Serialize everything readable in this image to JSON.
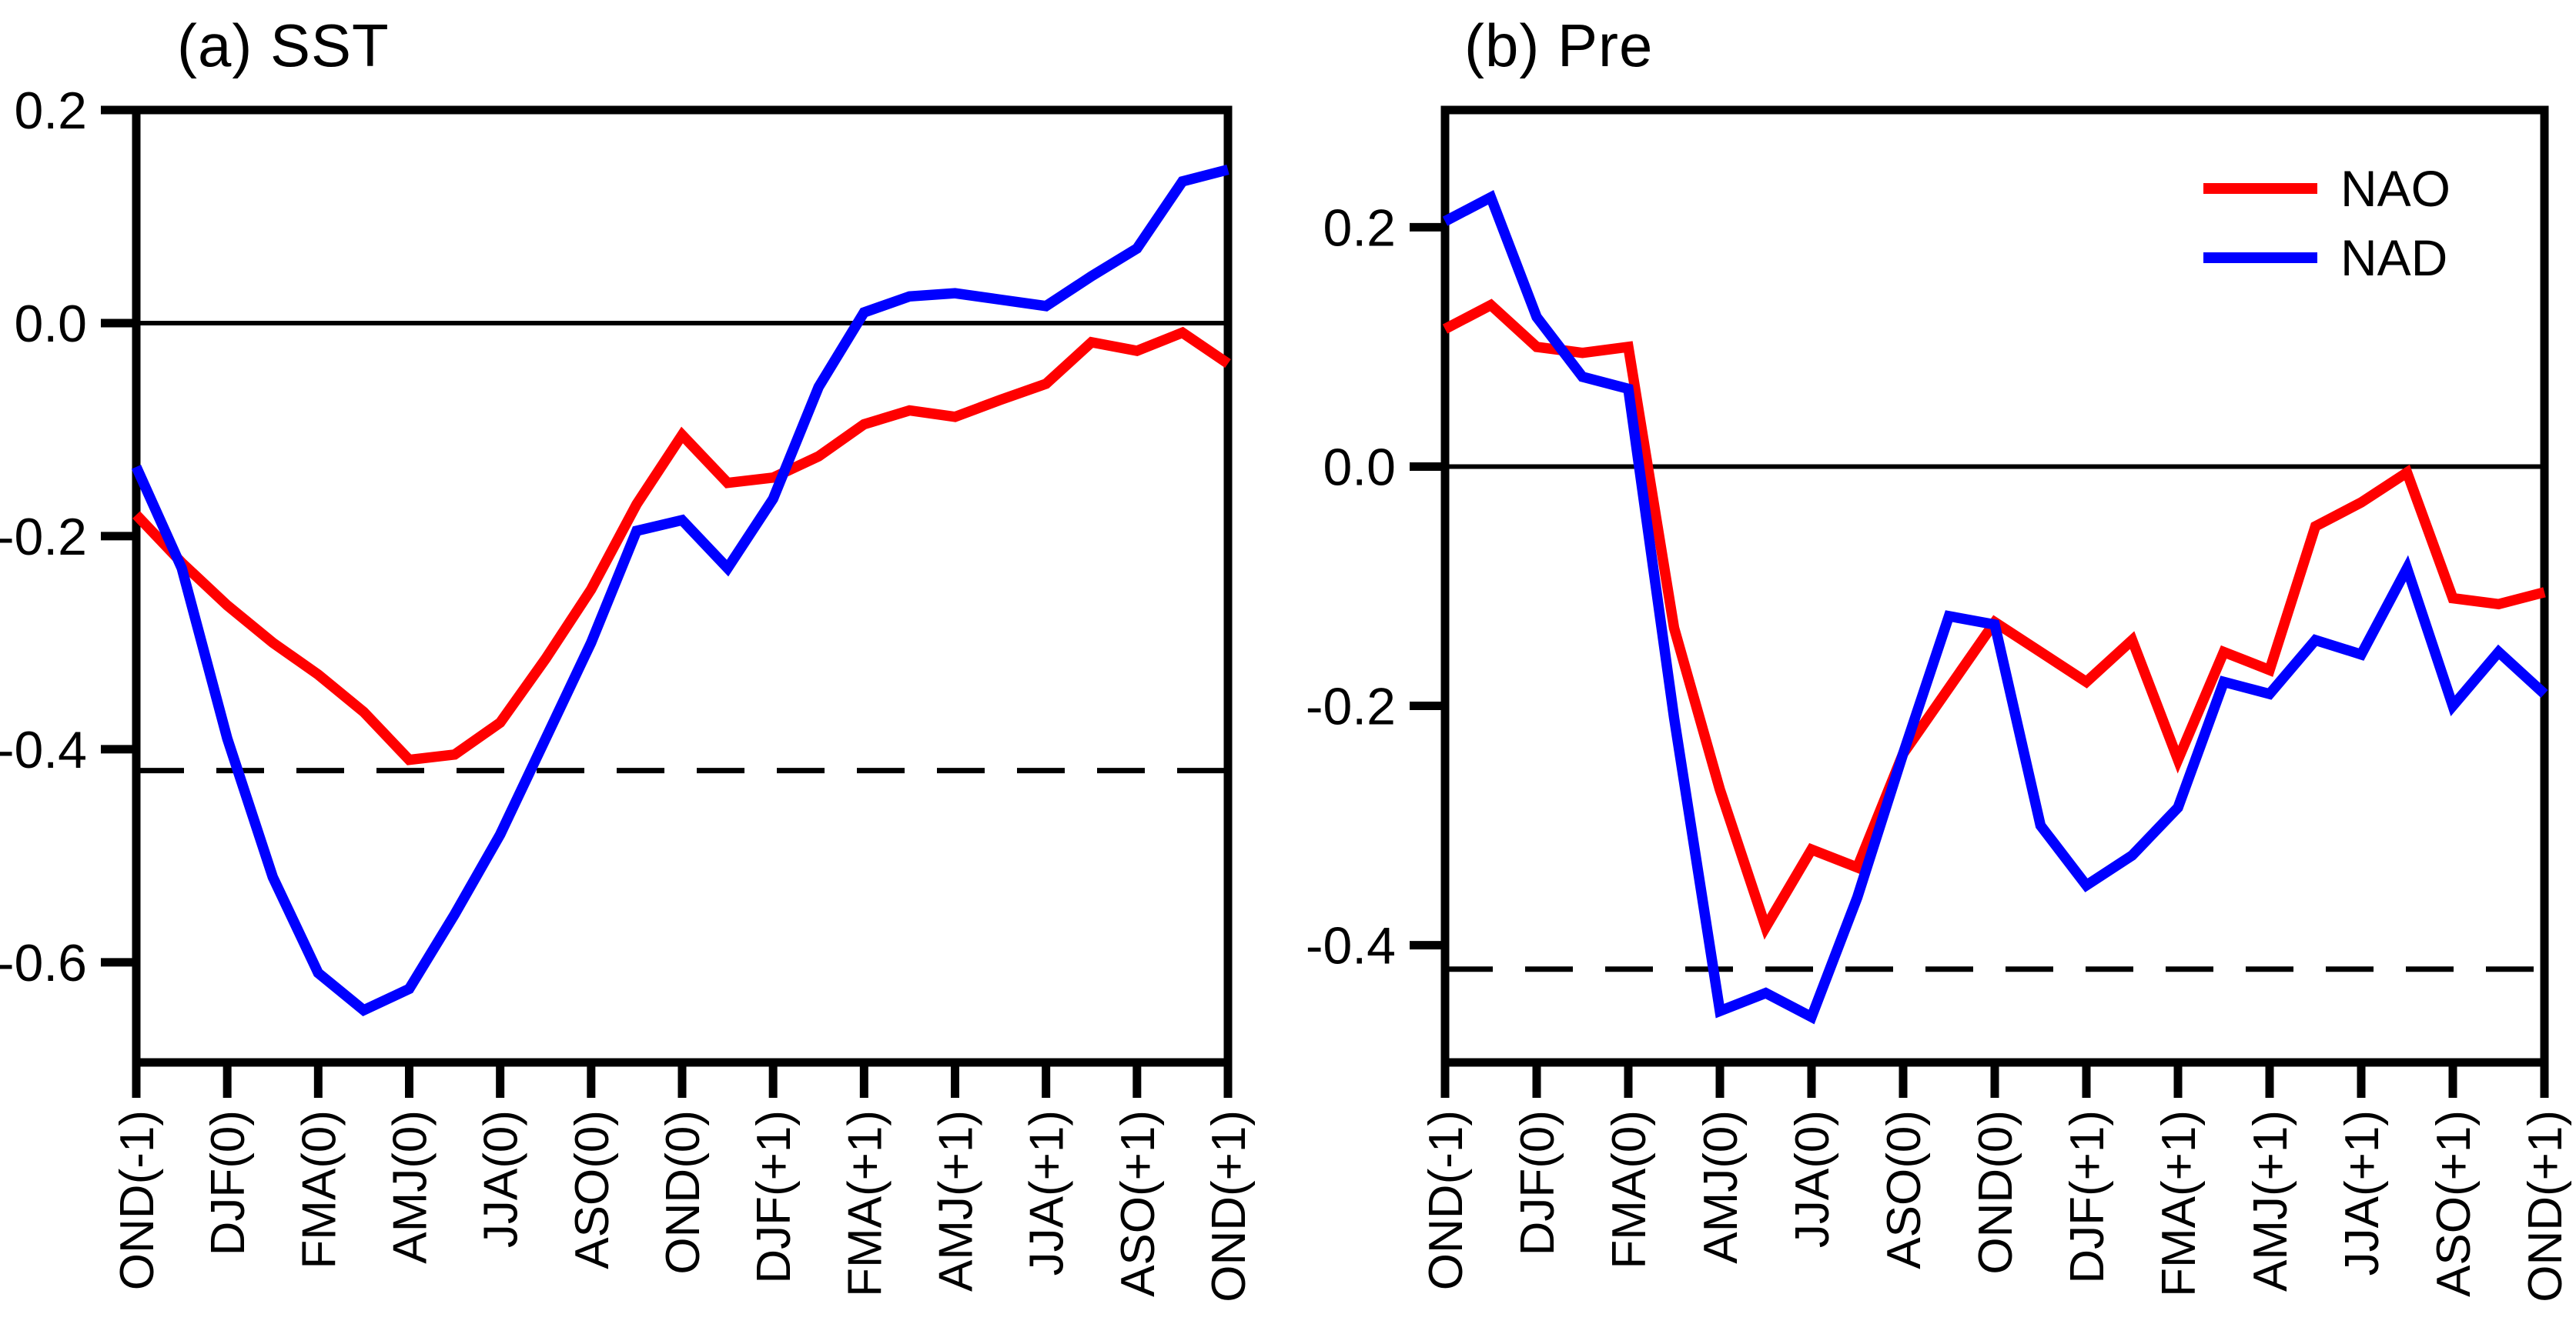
{
  "figure_background": "#ffffff",
  "chart_data": {
    "type": "line",
    "description": "Two-panel lead-lag correlation line chart; 25 data points per series, labeled x ticks fall on every other point (rolling 3-month seasons).",
    "x_tick_labels": [
      "OND(-1)",
      "DJF(0)",
      "FMA(0)",
      "AMJ(0)",
      "JJA(0)",
      "ASO(0)",
      "OND(0)",
      "DJF(+1)",
      "FMA(+1)",
      "AMJ(+1)",
      "JJA(+1)",
      "ASO(+1)",
      "OND(+1)"
    ],
    "grid": "off",
    "legend_position": "top-right of panel b",
    "legend": {
      "entries": [
        {
          "label": "NAO",
          "color": "#ff0000"
        },
        {
          "label": "NAD",
          "color": "#0000ff"
        }
      ]
    },
    "panels": [
      {
        "id": "a",
        "title": "(a) SST",
        "ylabel": "",
        "ylim": [
          -0.694,
          0.2
        ],
        "y_ticks": [
          {
            "value": 0.2,
            "label": "0.2"
          },
          {
            "value": 0.0,
            "label": "0.0"
          },
          {
            "value": -0.2,
            "label": "-0.2"
          },
          {
            "value": -0.4,
            "label": "-0.4"
          },
          {
            "value": -0.6,
            "label": "-0.6"
          }
        ],
        "zero_line": 0.0,
        "dashed_significance_line": -0.42,
        "series": [
          {
            "name": "NAO",
            "color": "#ff0000",
            "values": [
              -0.18,
              -0.225,
              -0.265,
              -0.3,
              -0.33,
              -0.365,
              -0.41,
              -0.405,
              -0.375,
              -0.315,
              -0.25,
              -0.17,
              -0.105,
              -0.15,
              -0.145,
              -0.125,
              -0.095,
              -0.082,
              -0.088,
              -0.072,
              -0.057,
              -0.018,
              -0.026,
              -0.009,
              -0.038
            ]
          },
          {
            "name": "NAD",
            "color": "#0000ff",
            "values": [
              -0.135,
              -0.23,
              -0.39,
              -0.52,
              -0.61,
              -0.645,
              -0.625,
              -0.555,
              -0.48,
              -0.39,
              -0.3,
              -0.195,
              -0.185,
              -0.23,
              -0.165,
              -0.06,
              0.01,
              0.025,
              0.028,
              0.022,
              0.016,
              0.044,
              0.07,
              0.133,
              0.144
            ]
          }
        ]
      },
      {
        "id": "b",
        "title": "(b) Pre",
        "ylabel": "",
        "ylim": [
          -0.498,
          0.298
        ],
        "y_ticks": [
          {
            "value": 0.2,
            "label": "0.2"
          },
          {
            "value": 0.0,
            "label": "0.0"
          },
          {
            "value": -0.2,
            "label": "-0.2"
          },
          {
            "value": -0.4,
            "label": "-0.4"
          }
        ],
        "zero_line": 0.0,
        "dashed_significance_line": -0.42,
        "series": [
          {
            "name": "NAO",
            "color": "#ff0000",
            "values": [
              0.115,
              0.135,
              0.1,
              0.095,
              0.1,
              -0.135,
              -0.27,
              -0.385,
              -0.32,
              -0.335,
              -0.24,
              -0.185,
              -0.13,
              -0.155,
              -0.18,
              -0.145,
              -0.245,
              -0.155,
              -0.17,
              -0.05,
              -0.03,
              -0.005,
              -0.11,
              -0.115,
              -0.105
            ]
          },
          {
            "name": "NAD",
            "color": "#0000ff",
            "values": [
              0.205,
              0.225,
              0.125,
              0.075,
              0.065,
              -0.21,
              -0.455,
              -0.44,
              -0.46,
              -0.36,
              -0.24,
              -0.125,
              -0.132,
              -0.3,
              -0.35,
              -0.325,
              -0.285,
              -0.18,
              -0.19,
              -0.145,
              -0.157,
              -0.085,
              -0.2,
              -0.155,
              -0.19
            ]
          }
        ]
      }
    ]
  }
}
